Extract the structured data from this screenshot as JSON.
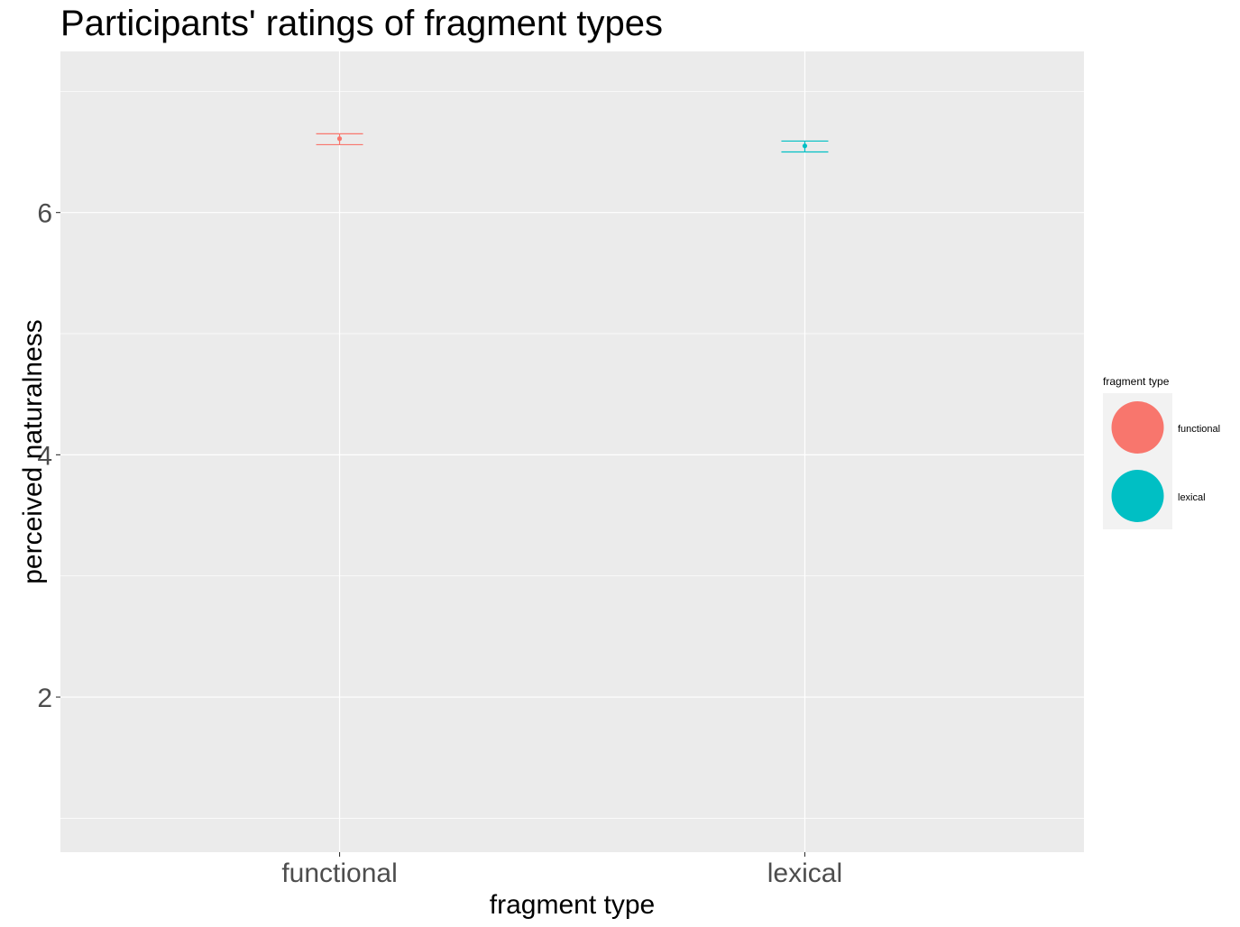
{
  "chart_data": {
    "type": "scatter",
    "title": "Participants' ratings of fragment types",
    "xlabel": "fragment type",
    "ylabel": "perceived naturalness",
    "categories": [
      "functional",
      "lexical"
    ],
    "ylim": [
      0.72,
      7.33
    ],
    "yticks": [
      2,
      4,
      6
    ],
    "grid": true,
    "legend": {
      "title": "fragment type",
      "placement": "right",
      "entries": [
        "functional",
        "lexical"
      ]
    },
    "series": [
      {
        "name": "functional",
        "color": "#F8766D",
        "mean": 6.61,
        "lower": 6.56,
        "upper": 6.65
      },
      {
        "name": "lexical",
        "color": "#00BFC4",
        "mean": 6.55,
        "lower": 6.5,
        "upper": 6.59
      }
    ]
  },
  "colors": {
    "panel_background": "#EBEBEB",
    "grid_major": "#FFFFFF",
    "grid_minor": "#F5F5F5",
    "legend_key_background": "#F2F2F2"
  }
}
